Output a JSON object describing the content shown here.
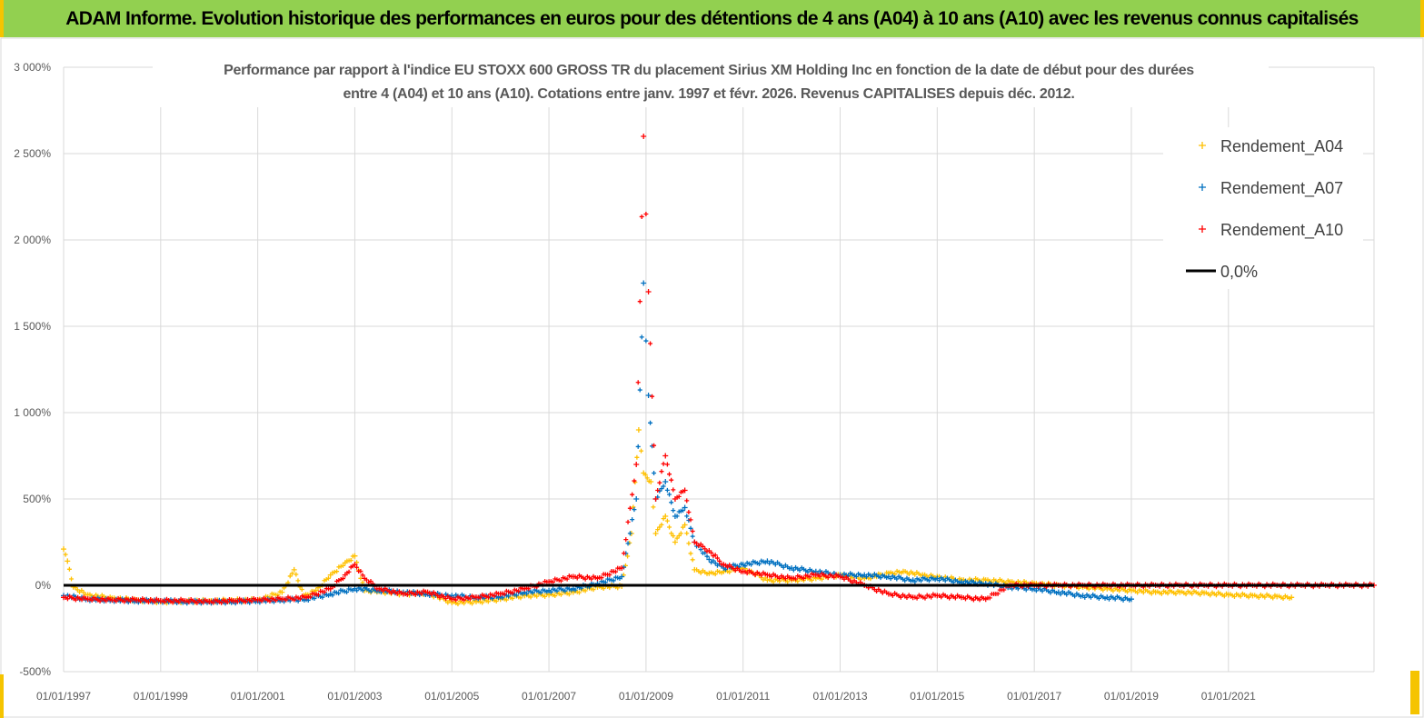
{
  "header": {
    "title": "ADAM Informe. Evolution historique des performances en euros pour des détentions de 4 ans (A04) à 10 ans (A10) avec les revenus connus capitalisés"
  },
  "colors": {
    "header_bg": "#92d050",
    "series_A04": "#ffc000",
    "series_A07": "#0070c0",
    "series_A10": "#ff0000",
    "zero_line": "#000000",
    "corner_marks": "#f5c400"
  },
  "chart_data": {
    "type": "scatter",
    "title_lines": [
      "Performance par rapport à l'indice EU STOXX 600 GROSS TR  du placement Sirius XM Holding Inc en fonction de la date de début pour des durées",
      "entre 4 (A04) et 10 ans (A10). Cotations entre janv. 1997 et févr. 2026. Revenus CAPITALISES depuis déc. 2012."
    ],
    "ylabel": "",
    "xlabel": "",
    "ylim": [
      -500,
      3000
    ],
    "xlim": [
      1997.0,
      2024.0
    ],
    "y_ticks": [
      -500,
      0,
      500,
      1000,
      1500,
      2000,
      2500,
      3000
    ],
    "y_tick_labels": [
      "-500%",
      "0%",
      "500%",
      "1 000%",
      "1 500%",
      "2 000%",
      "2 500%",
      "3 000%"
    ],
    "x_ticks": [
      1997,
      1999,
      2001,
      2003,
      2005,
      2007,
      2009,
      2011,
      2013,
      2015,
      2017,
      2019,
      2021
    ],
    "x_tick_labels": [
      "01/01/1997",
      "01/01/1999",
      "01/01/2001",
      "01/01/2003",
      "01/01/2005",
      "01/01/2007",
      "01/01/2009",
      "01/01/2011",
      "01/01/2013",
      "01/01/2015",
      "01/01/2017",
      "01/01/2019",
      "01/01/2021"
    ],
    "grid": true,
    "legend_position": "top-right",
    "legend": [
      {
        "label": "Rendement_A04",
        "color": "#ffc000",
        "marker": "plus"
      },
      {
        "label": "Rendement_A07",
        "color": "#0070c0",
        "marker": "plus"
      },
      {
        "label": "Rendement_A10",
        "color": "#ff0000",
        "marker": "plus"
      },
      {
        "label": "0,0%",
        "color": "#000000",
        "marker": "line"
      }
    ],
    "reference_line": {
      "label": "0,0%",
      "y": 0
    },
    "series": [
      {
        "name": "Rendement_A04",
        "color": "#ffc000",
        "x": [
          1997.0,
          1997.08,
          1997.2,
          1997.5,
          1998.0,
          1998.5,
          1999.0,
          2000.0,
          2001.0,
          2001.5,
          2001.75,
          2001.95,
          2002.2,
          2002.5,
          2002.8,
          2003.0,
          2003.2,
          2003.5,
          2004.0,
          2004.5,
          2005.0,
          2005.5,
          2006.0,
          2006.5,
          2007.0,
          2007.5,
          2008.0,
          2008.5,
          2008.7,
          2008.85,
          2008.95,
          2009.1,
          2009.2,
          2009.4,
          2009.6,
          2009.8,
          2010.0,
          2010.3,
          2010.6,
          2011.0,
          2011.5,
          2012.0,
          2012.5,
          2013.0,
          2013.5,
          2014.0,
          2014.3,
          2014.7,
          2015.0,
          2015.5,
          2016.0,
          2016.5,
          2017.0,
          2017.5,
          2018.0,
          2018.5,
          2019.0,
          2019.5,
          2020.0,
          2020.5,
          2021.0,
          2021.5,
          2022.0,
          2022.3
        ],
        "y": [
          210,
          140,
          -10,
          -55,
          -75,
          -85,
          -95,
          -90,
          -85,
          -40,
          90,
          -60,
          -30,
          60,
          130,
          170,
          -30,
          -35,
          -50,
          -45,
          -100,
          -95,
          -80,
          -60,
          -55,
          -40,
          -10,
          -5,
          300,
          900,
          650,
          600,
          300,
          400,
          250,
          350,
          90,
          70,
          80,
          100,
          30,
          30,
          40,
          60,
          40,
          70,
          80,
          60,
          50,
          30,
          30,
          20,
          10,
          0,
          -10,
          -20,
          -30,
          -40,
          -40,
          -45,
          -55,
          -60,
          -65,
          -70
        ]
      },
      {
        "name": "Rendement_A07",
        "color": "#0070c0",
        "x": [
          1997.0,
          1997.5,
          1998.0,
          1998.5,
          1999.0,
          1999.5,
          2000.0,
          2000.5,
          2001.0,
          2001.5,
          2002.0,
          2002.5,
          2003.0,
          2003.5,
          2004.0,
          2004.5,
          2005.0,
          2005.5,
          2006.0,
          2006.5,
          2007.0,
          2007.5,
          2008.0,
          2008.5,
          2008.8,
          2008.95,
          2009.05,
          2009.2,
          2009.4,
          2009.6,
          2009.8,
          2010.0,
          2010.3,
          2010.6,
          2011.0,
          2011.5,
          2012.0,
          2012.5,
          2013.0,
          2013.5,
          2014.0,
          2014.5,
          2015.0,
          2015.5,
          2016.0,
          2016.5,
          2017.0,
          2017.5,
          2018.0,
          2018.5,
          2019.0
        ],
        "y": [
          -60,
          -80,
          -85,
          -90,
          -90,
          -95,
          -95,
          -95,
          -90,
          -85,
          -80,
          -50,
          -20,
          -30,
          -40,
          -50,
          -60,
          -70,
          -65,
          -40,
          -30,
          -20,
          10,
          50,
          500,
          1750,
          1100,
          500,
          600,
          400,
          450,
          250,
          150,
          100,
          120,
          140,
          100,
          80,
          60,
          60,
          50,
          30,
          40,
          20,
          10,
          -10,
          -20,
          -40,
          -60,
          -70,
          -80
        ]
      },
      {
        "name": "Rendement_A10",
        "color": "#ff0000",
        "x": [
          1997.0,
          1997.5,
          1998.0,
          1998.5,
          1999.0,
          1999.5,
          2000.0,
          2000.5,
          2001.0,
          2001.5,
          2002.0,
          2002.5,
          2002.8,
          2003.0,
          2003.2,
          2003.5,
          2004.0,
          2004.5,
          2005.0,
          2005.5,
          2006.0,
          2006.5,
          2007.0,
          2007.5,
          2008.0,
          2008.5,
          2008.8,
          2008.95,
          2009.05,
          2009.2,
          2009.4,
          2009.6,
          2009.8,
          2010.0,
          2010.3,
          2010.6,
          2011.0,
          2011.5,
          2012.0,
          2012.5,
          2013.0,
          2013.5,
          2014.0,
          2014.5,
          2015.0,
          2015.5,
          2016.0,
          2016.5,
          2017.0,
          2017.5,
          2018.0,
          2018.5,
          2019.0,
          2019.5,
          2020.0,
          2020.5,
          2021.0,
          2021.5,
          2022.0,
          2022.5,
          2023.0,
          2023.5,
          2024.0
        ],
        "y": [
          -70,
          -80,
          -85,
          -85,
          -90,
          -90,
          -95,
          -90,
          -85,
          -80,
          -70,
          -20,
          60,
          120,
          40,
          -20,
          -50,
          -40,
          -80,
          -70,
          -50,
          -20,
          20,
          50,
          40,
          100,
          700,
          2600,
          1700,
          500,
          750,
          500,
          550,
          250,
          200,
          120,
          80,
          60,
          40,
          60,
          50,
          0,
          -50,
          -70,
          -60,
          -70,
          -80,
          0,
          0,
          0,
          0,
          0,
          0,
          0,
          0,
          0,
          0,
          0,
          0,
          0,
          0,
          0,
          0
        ]
      }
    ]
  }
}
